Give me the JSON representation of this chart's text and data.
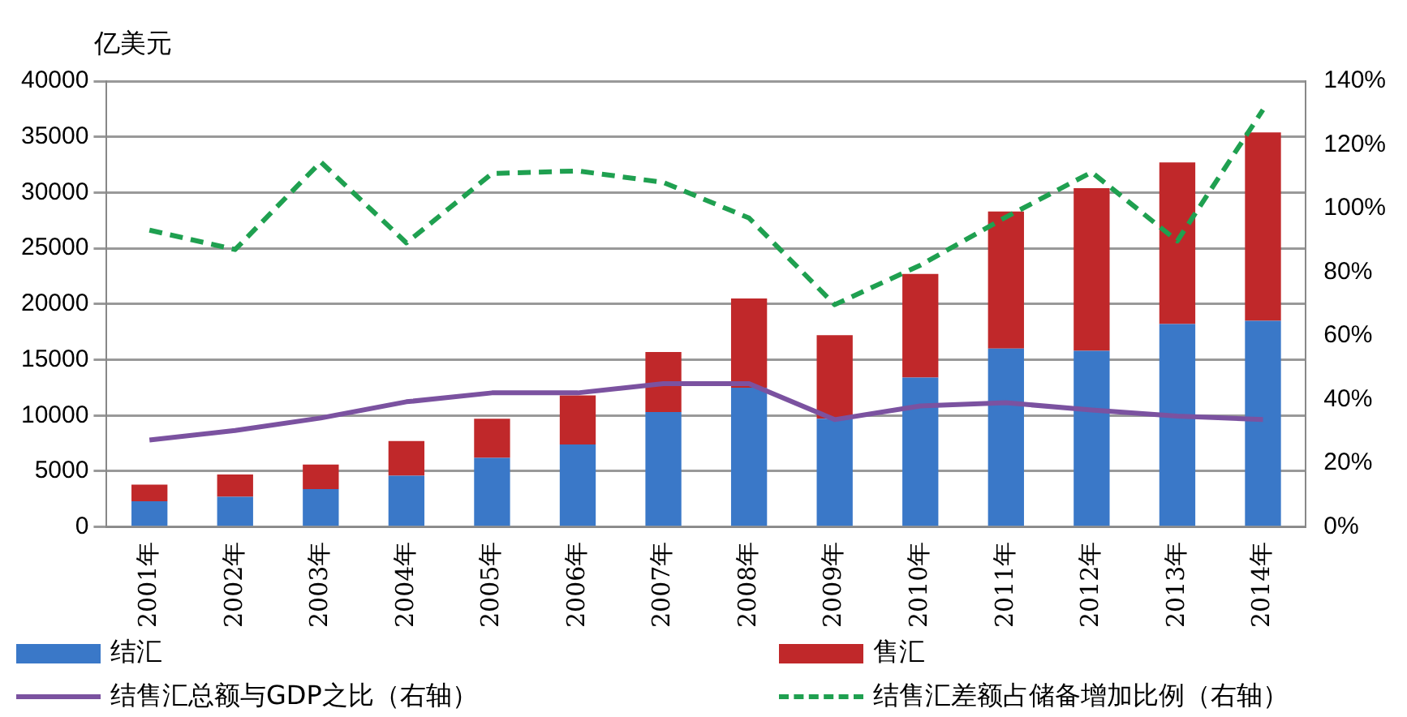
{
  "chart_data": {
    "type": "bar",
    "ylabel": "亿美元",
    "stacked": true,
    "grid": "y",
    "legend": "bottom",
    "marker": "none",
    "categories": [
      "2001年",
      "2002年",
      "2003年",
      "2004年",
      "2005年",
      "2006年",
      "2007年",
      "2008年",
      "2009年",
      "2010年",
      "2011年",
      "2012年",
      "2013年",
      "2014年"
    ],
    "ylim": [
      0,
      40000
    ],
    "yticks": [
      0,
      5000,
      10000,
      15000,
      20000,
      25000,
      30000,
      35000,
      40000
    ],
    "y2lim": [
      0,
      140
    ],
    "y2ticks": [
      {
        "value": 0,
        "label": "0%"
      },
      {
        "value": 20,
        "label": "20%"
      },
      {
        "value": 40,
        "label": "40%"
      },
      {
        "value": 60,
        "label": "60%"
      },
      {
        "value": 80,
        "label": "80%"
      },
      {
        "value": 100,
        "label": "100%"
      },
      {
        "value": 120,
        "label": "120%"
      },
      {
        "value": 140,
        "label": "140%"
      }
    ],
    "series": [
      {
        "name": "结汇",
        "color": "#3a78c8",
        "values": [
          2300,
          2700,
          3400,
          4600,
          6200,
          7400,
          10300,
          12500,
          9700,
          13400,
          16000,
          15800,
          18200,
          18500
        ]
      },
      {
        "name": "售汇",
        "color": "#c0282a",
        "values": [
          1500,
          2000,
          2200,
          3100,
          3500,
          4400,
          5400,
          8000,
          7500,
          9300,
          12300,
          14600,
          14500,
          16900
        ]
      },
      {
        "name": "结售汇总额与GDP之比（右轴）",
        "type": "line",
        "axis": "y2",
        "color": "#7b52a0",
        "line_style": "solid",
        "values": [
          27.3,
          30.3,
          34.2,
          39.3,
          42.1,
          42.1,
          45,
          45,
          33.7,
          38,
          39,
          36.7,
          34.8,
          33.7
        ]
      },
      {
        "name": "结售汇差额占储备增加比例（右轴）",
        "type": "line",
        "axis": "y2",
        "color": "#1fa050",
        "line_style": "dashed",
        "values": [
          93.2,
          87.1,
          114.6,
          89.2,
          111,
          111.8,
          108.2,
          97,
          69.8,
          82.2,
          97.3,
          111.4,
          89.8,
          131
        ]
      }
    ]
  }
}
